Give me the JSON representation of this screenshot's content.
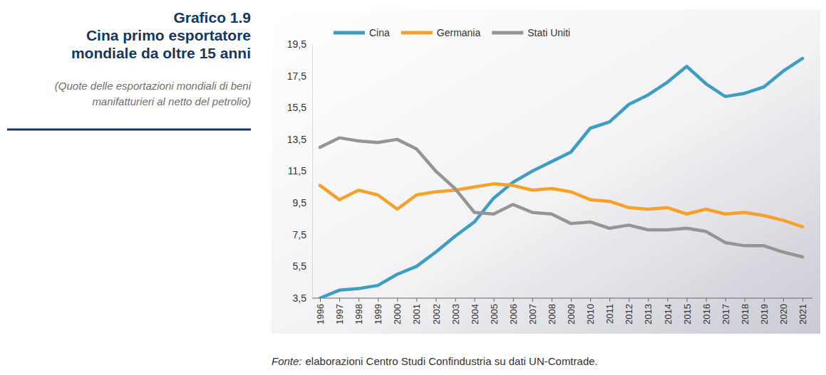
{
  "chart_data": {
    "type": "line",
    "figure_label": "Grafico 1.9",
    "title": "Cina primo esportatore mondiale da oltre 15 anni",
    "subtitle": "(Quote delle esportazioni mondiali di beni manifatturieri al netto del petrolio)",
    "source_label": "Fonte:",
    "source": "elaborazioni Centro Studi Confindustria su dati UN-Comtrade.",
    "categories": [
      "1996",
      "1997",
      "1998",
      "1999",
      "2000",
      "2001",
      "2002",
      "2003",
      "2004",
      "2005",
      "2006",
      "2007",
      "2008",
      "2009",
      "2010",
      "2011",
      "2012",
      "2013",
      "2014",
      "2015",
      "2016",
      "2017",
      "2018",
      "2019",
      "2020",
      "2021"
    ],
    "series": [
      {
        "name": "Cina",
        "color": "#3d9dc2",
        "values": [
          3.5,
          4.0,
          4.1,
          4.3,
          5.0,
          5.5,
          6.4,
          7.4,
          8.3,
          9.8,
          10.8,
          11.5,
          12.1,
          12.7,
          14.2,
          14.6,
          15.7,
          16.3,
          17.1,
          18.1,
          17.0,
          16.2,
          16.4,
          16.8,
          17.8,
          18.6
        ]
      },
      {
        "name": "Germania",
        "color": "#f7a12b",
        "values": [
          10.6,
          9.7,
          10.3,
          10.0,
          9.1,
          10.0,
          10.2,
          10.3,
          10.5,
          10.7,
          10.6,
          10.3,
          10.4,
          10.2,
          9.7,
          9.6,
          9.2,
          9.1,
          9.2,
          8.8,
          9.1,
          8.8,
          8.9,
          8.7,
          8.4,
          8.0
        ]
      },
      {
        "name": "Stati Uniti",
        "color": "#959595",
        "values": [
          13.0,
          13.6,
          13.4,
          13.3,
          13.5,
          12.9,
          11.5,
          10.4,
          8.9,
          8.8,
          9.4,
          8.9,
          8.8,
          8.2,
          8.3,
          7.9,
          8.1,
          7.8,
          7.8,
          7.9,
          7.7,
          7.0,
          6.8,
          6.8,
          6.4,
          6.1
        ]
      }
    ],
    "ylim": [
      3.5,
      19.5
    ],
    "yticks": [
      {
        "value": 3.5,
        "label": "3,5"
      },
      {
        "value": 5.5,
        "label": "5,5"
      },
      {
        "value": 7.5,
        "label": "7,5"
      },
      {
        "value": 9.5,
        "label": "9,5"
      },
      {
        "value": 11.5,
        "label": "11,5"
      },
      {
        "value": 13.5,
        "label": "13,5"
      },
      {
        "value": 15.5,
        "label": "15,5"
      },
      {
        "value": 17.5,
        "label": "17,5"
      },
      {
        "value": 19.5,
        "label": "19,5"
      }
    ],
    "grid": false,
    "legend": "top"
  }
}
